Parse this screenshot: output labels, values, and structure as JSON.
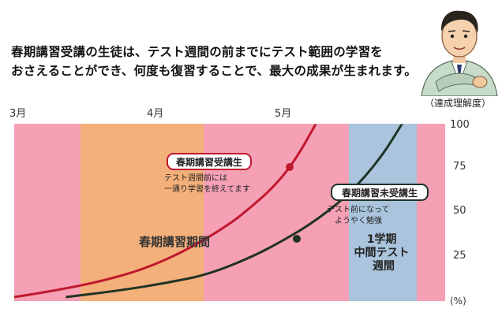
{
  "intro": {
    "line1": "春期講習受講の生徒は、テスト週間の前までにテスト範囲の学習を",
    "line2": "おさえることができ、何度も復習することで、最大の成果が生まれます。"
  },
  "unit_note": "（達成理解度）",
  "chart_data": {
    "type": "line",
    "x_ticks": [
      "3月",
      "4月",
      "5月"
    ],
    "y_ticks": [
      "100",
      "75",
      "50",
      "25"
    ],
    "y_unit": "(%)",
    "ylim": [
      0,
      100
    ],
    "periods": [
      {
        "label": "春期講習期間",
        "color": "#f4b07a"
      },
      {
        "label": "1学期\n中間テスト\n週間",
        "color": "#a9c4dc"
      }
    ],
    "background_color": "#f5a0b4",
    "series": [
      {
        "name": "春期講習受講生",
        "note": "テスト週間前には\n一通り学習を終えてます",
        "color": "#c0182f",
        "points": [
          [
            0,
            0
          ],
          [
            10,
            4
          ],
          [
            20,
            9
          ],
          [
            30,
            16
          ],
          [
            40,
            27
          ],
          [
            50,
            42
          ],
          [
            55,
            52
          ],
          [
            60,
            63
          ],
          [
            65,
            78
          ],
          [
            70,
            100
          ]
        ]
      },
      {
        "name": "春期講習未受講生",
        "note": "テスト前になって\nようやく勉強",
        "color": "#1f3324",
        "points": [
          [
            12,
            0
          ],
          [
            25,
            4
          ],
          [
            35,
            8
          ],
          [
            45,
            13
          ],
          [
            55,
            23
          ],
          [
            62,
            32
          ],
          [
            70,
            44
          ],
          [
            78,
            60
          ],
          [
            85,
            80
          ],
          [
            90,
            100
          ]
        ]
      }
    ]
  }
}
